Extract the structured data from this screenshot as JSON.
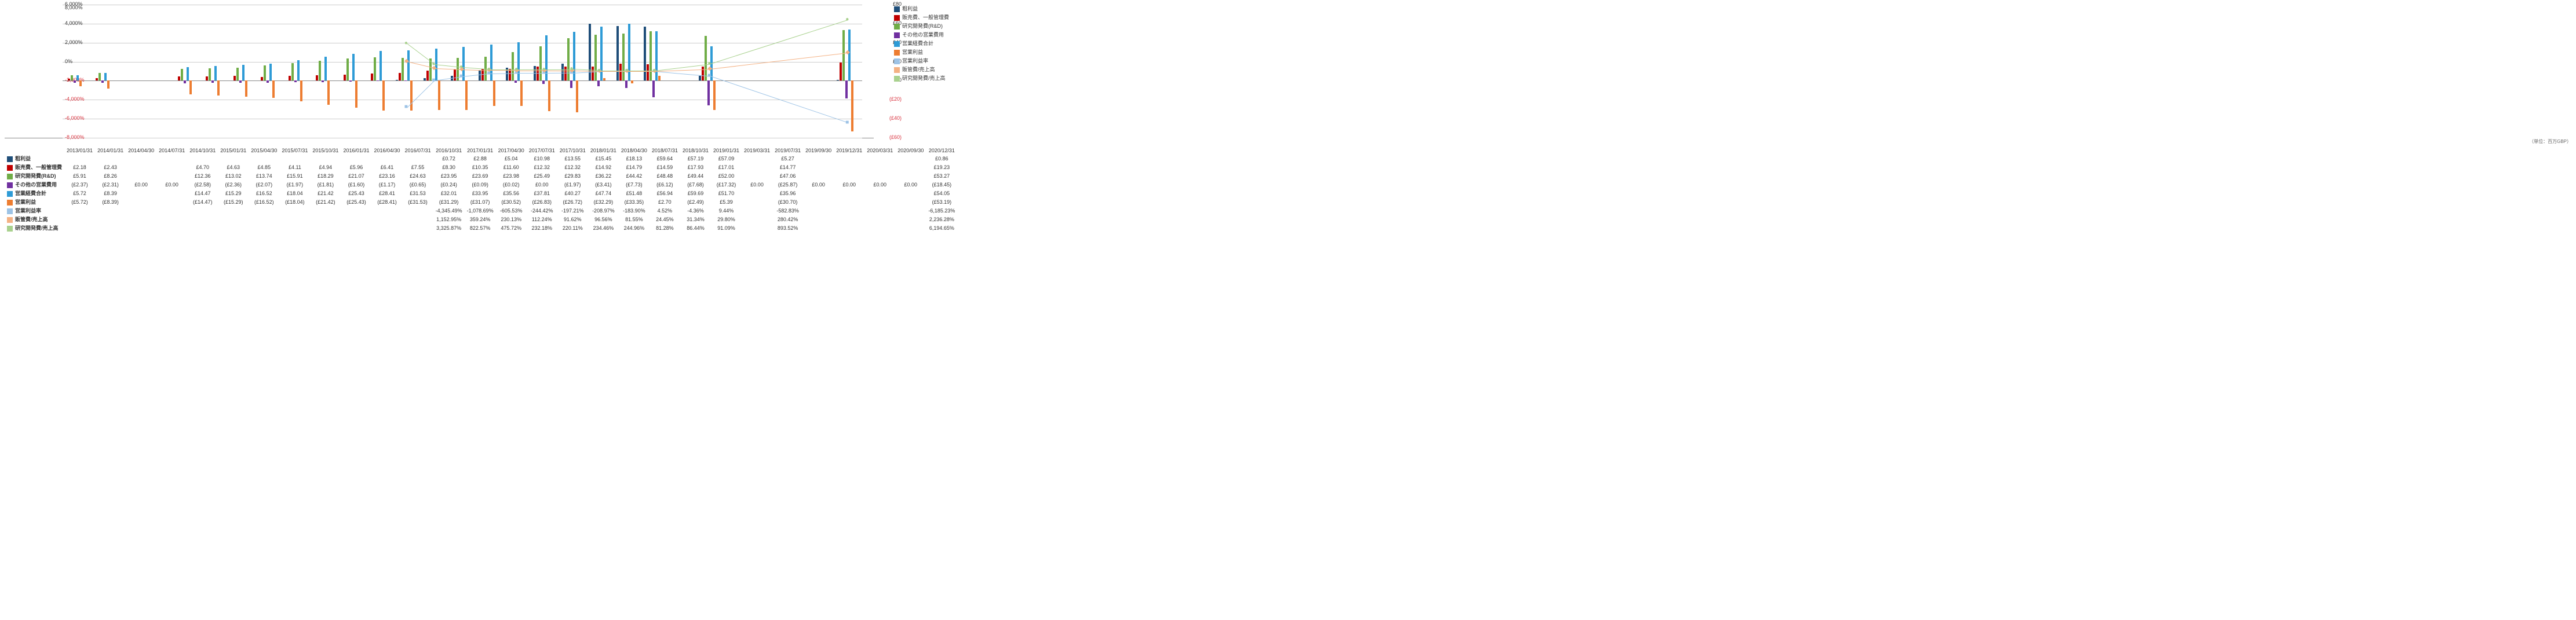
{
  "unit_label": "（単位：百万GBP）",
  "left_axis": {
    "ticks": [
      -60,
      -40,
      -20,
      0,
      20,
      40,
      60,
      80
    ],
    "fmt": "£",
    "neg": "(£{v})"
  },
  "right_axis": {
    "ticks": [
      -8000,
      -6000,
      -4000,
      -2000,
      0,
      2000,
      4000,
      6000,
      8000
    ],
    "suffix": "%",
    "neg_color": "#d9333f"
  },
  "colors": {
    "grossProfit": "#1f4e79",
    "sga": "#c00000",
    "rd": "#70ad47",
    "otherOp": "#7030a0",
    "opExp": "#2e9bd6",
    "opInc": "#ed7d31",
    "opMargin": "#9dc3e6",
    "sgaRatio": "#f4b183",
    "rdRatio": "#a9d18e",
    "grid": "#cccccc",
    "baseline": "#888888"
  },
  "series_labels": {
    "grossProfit": "粗利益",
    "sga": "販売費、一般管理費",
    "rd": "研究開発費(R&D)",
    "otherOp": "その他の営業費用",
    "opExp": "営業経費合計",
    "opInc": "営業利益",
    "opMargin": "営業利益率",
    "sgaRatio": "販管費/売上高",
    "rdRatio": "研究開発費/売上高"
  },
  "periods": [
    "2013/01/31",
    "2014/01/31",
    "2014/04/30",
    "2014/07/31",
    "2014/10/31",
    "2015/01/31",
    "2015/04/30",
    "2015/07/31",
    "2015/10/31",
    "2016/01/31",
    "2016/04/30",
    "2016/07/31",
    "2016/10/31",
    "2017/01/31",
    "2017/04/30",
    "2017/07/31",
    "2017/10/31",
    "2018/01/31",
    "2018/04/30",
    "2018/07/31",
    "2018/10/31",
    "2019/01/31",
    "2019/03/31",
    "2019/07/31",
    "2019/09/30",
    "2019/12/31",
    "2020/03/31",
    "2020/09/30",
    "2020/12/31"
  ],
  "rows": [
    {
      "key": "grossProfit",
      "type": "bar",
      "data": [
        null,
        null,
        null,
        null,
        null,
        null,
        null,
        null,
        null,
        null,
        null,
        null,
        0.72,
        2.88,
        5.04,
        10.98,
        13.55,
        15.45,
        18.13,
        59.64,
        57.19,
        57.09,
        null,
        5.27,
        null,
        null,
        null,
        null,
        0.86
      ]
    },
    {
      "key": "sga",
      "type": "bar",
      "data": [
        2.18,
        2.43,
        null,
        null,
        4.7,
        4.63,
        4.85,
        4.11,
        4.94,
        5.96,
        6.41,
        7.55,
        8.3,
        10.35,
        11.6,
        12.32,
        12.32,
        14.92,
        14.79,
        14.59,
        17.93,
        17.01,
        null,
        14.77,
        null,
        null,
        null,
        null,
        19.23
      ]
    },
    {
      "key": "rd",
      "type": "bar",
      "data": [
        5.91,
        8.26,
        null,
        null,
        12.36,
        13.02,
        13.74,
        15.91,
        18.29,
        21.07,
        23.16,
        24.63,
        23.95,
        23.69,
        23.98,
        25.49,
        29.83,
        36.22,
        44.42,
        48.48,
        49.44,
        52.0,
        null,
        47.06,
        null,
        null,
        null,
        null,
        53.27
      ]
    },
    {
      "key": "otherOp",
      "type": "bar",
      "data": [
        -2.37,
        -2.31,
        0.0,
        0.0,
        -2.58,
        -2.36,
        -2.07,
        -1.97,
        -1.81,
        -1.6,
        -1.17,
        -0.65,
        -0.24,
        -0.09,
        -0.02,
        0.0,
        -1.97,
        -3.41,
        -7.73,
        -6.12,
        -7.68,
        -17.32,
        0.0,
        -25.87,
        0.0,
        0.0,
        0.0,
        0.0,
        -18.45
      ]
    },
    {
      "key": "opExp",
      "type": "bar",
      "data": [
        5.72,
        8.39,
        null,
        null,
        14.47,
        15.29,
        16.52,
        18.04,
        21.42,
        25.43,
        28.41,
        31.53,
        32.01,
        33.95,
        35.56,
        37.81,
        40.27,
        47.74,
        51.48,
        56.94,
        59.69,
        51.7,
        null,
        35.96,
        null,
        null,
        null,
        null,
        54.05
      ]
    },
    {
      "key": "opInc",
      "type": "bar",
      "data": [
        -5.72,
        -8.39,
        null,
        null,
        -14.47,
        -15.29,
        -16.52,
        -18.04,
        -21.42,
        -25.43,
        -28.41,
        -31.53,
        -31.29,
        -31.07,
        -30.52,
        -26.83,
        -26.72,
        -32.29,
        -33.35,
        2.7,
        -2.49,
        5.39,
        null,
        -30.7,
        null,
        null,
        null,
        null,
        -53.19
      ]
    },
    {
      "key": "opMargin",
      "type": "line",
      "axis": "r",
      "data": [
        null,
        null,
        null,
        null,
        null,
        null,
        null,
        null,
        null,
        null,
        null,
        null,
        -4345.49,
        -1078.69,
        -605.53,
        -244.42,
        -197.21,
        -208.97,
        -183.9,
        4.52,
        -4.36,
        9.44,
        null,
        -582.83,
        null,
        null,
        null,
        null,
        -6185.23
      ]
    },
    {
      "key": "sgaRatio",
      "type": "line",
      "axis": "r",
      "data": [
        null,
        null,
        null,
        null,
        null,
        null,
        null,
        null,
        null,
        null,
        null,
        null,
        1152.95,
        359.24,
        230.13,
        112.24,
        91.62,
        96.56,
        81.55,
        24.45,
        31.34,
        29.8,
        null,
        280.42,
        null,
        null,
        null,
        null,
        2236.28
      ]
    },
    {
      "key": "rdRatio",
      "type": "line",
      "axis": "r",
      "data": [
        null,
        null,
        null,
        null,
        null,
        null,
        null,
        null,
        null,
        null,
        null,
        null,
        3325.87,
        822.57,
        475.72,
        232.18,
        220.11,
        234.46,
        244.96,
        81.28,
        86.44,
        91.09,
        null,
        893.52,
        null,
        null,
        null,
        null,
        6194.65
      ]
    }
  ]
}
